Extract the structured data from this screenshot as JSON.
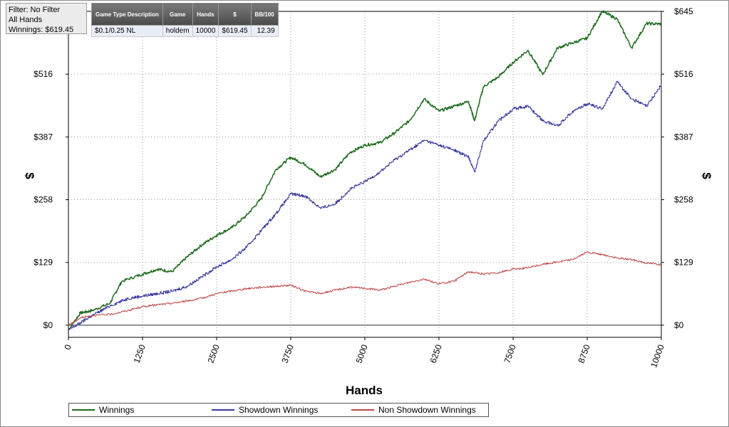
{
  "filter_panel": {
    "filter_line": "Filter: No Filter",
    "hands_line": "All Hands",
    "winnings_line": "Winnings: $619.45"
  },
  "summary_table": {
    "headers": [
      "Game Type Description",
      "Game",
      "Hands",
      "$",
      "BB/100"
    ],
    "row": [
      "$0.1/0.25 NL",
      "holdem",
      "10000",
      "$619.45",
      "12.39"
    ]
  },
  "chart_data": {
    "type": "line",
    "xlabel": "Hands",
    "ylabel": "$",
    "xlim": [
      0,
      10000
    ],
    "ylim": [
      -25,
      645
    ],
    "x_ticks": [
      0,
      1250,
      2500,
      3750,
      5000,
      6250,
      7500,
      8750,
      10000
    ],
    "x_tick_labels": [
      "0",
      "1250",
      "2500",
      "3750",
      "5000",
      "6250",
      "7500",
      "8750",
      "10000"
    ],
    "y_ticks": [
      0,
      129,
      258,
      387,
      516,
      645
    ],
    "y_tick_labels": [
      "$0",
      "$129",
      "$258",
      "$387",
      "$516",
      "$645"
    ],
    "grid": true,
    "legend_position": "bottom",
    "series": [
      {
        "name": "Winnings",
        "color": "#1e6b1e",
        "x": [
          0,
          200,
          400,
          700,
          900,
          1250,
          1500,
          1750,
          2000,
          2250,
          2500,
          2750,
          3000,
          3250,
          3500,
          3750,
          4000,
          4250,
          4500,
          4750,
          5000,
          5250,
          5500,
          5750,
          6000,
          6250,
          6500,
          6750,
          6850,
          7000,
          7250,
          7500,
          7750,
          8000,
          8250,
          8500,
          8750,
          9000,
          9250,
          9500,
          9750,
          10000
        ],
        "y": [
          -10,
          25,
          30,
          45,
          90,
          105,
          115,
          110,
          140,
          165,
          185,
          200,
          225,
          260,
          320,
          345,
          330,
          305,
          320,
          355,
          370,
          375,
          395,
          420,
          465,
          440,
          450,
          460,
          420,
          490,
          510,
          540,
          565,
          515,
          570,
          580,
          590,
          645,
          630,
          570,
          620,
          619
        ]
      },
      {
        "name": "Showdown Winnings",
        "color": "#3a3aa0",
        "x": [
          0,
          200,
          400,
          700,
          1000,
          1250,
          1500,
          1750,
          2000,
          2250,
          2500,
          2750,
          3000,
          3250,
          3500,
          3750,
          4000,
          4250,
          4500,
          4750,
          5000,
          5250,
          5500,
          5750,
          6000,
          6250,
          6500,
          6750,
          6850,
          7000,
          7250,
          7500,
          7750,
          8000,
          8250,
          8500,
          8750,
          9000,
          9250,
          9500,
          9750,
          10000
        ],
        "y": [
          -10,
          5,
          20,
          40,
          55,
          60,
          65,
          70,
          80,
          100,
          120,
          135,
          160,
          195,
          230,
          270,
          265,
          240,
          250,
          280,
          295,
          315,
          340,
          360,
          380,
          370,
          360,
          345,
          315,
          380,
          420,
          445,
          450,
          420,
          410,
          440,
          455,
          445,
          500,
          465,
          450,
          495
        ]
      },
      {
        "name": "Non Showdown Winnings",
        "color": "#c04545",
        "x": [
          0,
          200,
          400,
          700,
          1000,
          1250,
          1500,
          1750,
          2000,
          2250,
          2500,
          2750,
          3000,
          3250,
          3500,
          3750,
          4000,
          4250,
          4500,
          4750,
          5000,
          5250,
          5500,
          5750,
          6000,
          6250,
          6500,
          6750,
          7000,
          7250,
          7500,
          7750,
          8000,
          8250,
          8500,
          8750,
          9000,
          9250,
          9500,
          9750,
          10000
        ],
        "y": [
          0,
          15,
          20,
          22,
          30,
          38,
          42,
          45,
          50,
          55,
          65,
          70,
          75,
          78,
          80,
          82,
          70,
          65,
          72,
          78,
          76,
          72,
          80,
          88,
          95,
          85,
          90,
          110,
          105,
          108,
          115,
          118,
          125,
          130,
          135,
          150,
          145,
          138,
          135,
          128,
          125
        ]
      }
    ]
  }
}
